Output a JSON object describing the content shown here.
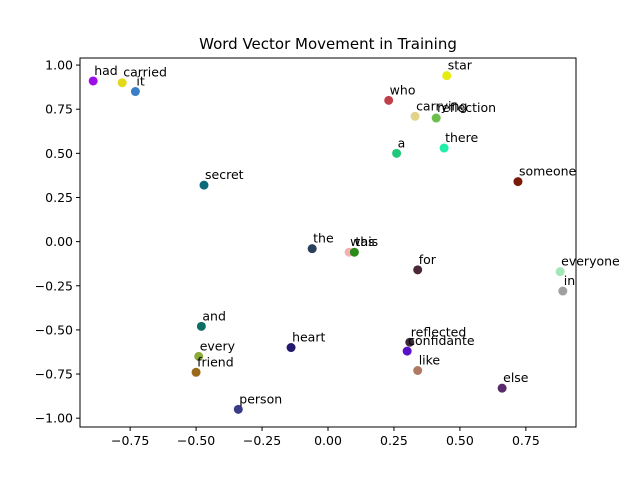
{
  "chart_data": {
    "type": "scatter",
    "title": "Word Vector Movement in Training",
    "xlabel": "",
    "ylabel": "",
    "xlim": [
      -0.94,
      0.94
    ],
    "ylim": [
      -1.05,
      1.04
    ],
    "xticks": [
      -0.75,
      -0.5,
      -0.25,
      0.0,
      0.25,
      0.5,
      0.75
    ],
    "xtick_labels": [
      "−0.75",
      "−0.50",
      "−0.25",
      "0.00",
      "0.25",
      "0.50",
      "0.75"
    ],
    "yticks": [
      -1.0,
      -0.75,
      -0.5,
      -0.25,
      0.0,
      0.25,
      0.5,
      0.75,
      1.0
    ],
    "ytick_labels": [
      "−1.00",
      "−0.75",
      "−0.50",
      "−0.25",
      "0.00",
      "0.25",
      "0.50",
      "0.75",
      "1.00"
    ],
    "grid": false,
    "points": [
      {
        "label": "had",
        "x": -0.89,
        "y": 0.91,
        "color": "#9b0fe6"
      },
      {
        "label": "carried",
        "x": -0.78,
        "y": 0.9,
        "color": "#e3d81a"
      },
      {
        "label": "it",
        "x": -0.73,
        "y": 0.85,
        "color": "#3a7dc9"
      },
      {
        "label": "secret",
        "x": -0.47,
        "y": 0.32,
        "color": "#0b6a7a"
      },
      {
        "label": "who",
        "x": 0.23,
        "y": 0.8,
        "color": "#c0404a"
      },
      {
        "label": "star",
        "x": 0.45,
        "y": 0.94,
        "color": "#e6ec12"
      },
      {
        "label": "carrying",
        "x": 0.33,
        "y": 0.71,
        "color": "#e3d28a"
      },
      {
        "label": "reflection",
        "x": 0.41,
        "y": 0.7,
        "color": "#6ac04a"
      },
      {
        "label": "a",
        "x": 0.26,
        "y": 0.5,
        "color": "#1fc87a"
      },
      {
        "label": "there",
        "x": 0.44,
        "y": 0.53,
        "color": "#1ef0a8"
      },
      {
        "label": "someone",
        "x": 0.72,
        "y": 0.34,
        "color": "#7a1a08"
      },
      {
        "label": "the",
        "x": -0.06,
        "y": -0.04,
        "color": "#2a3f5c"
      },
      {
        "label": "was",
        "x": 0.08,
        "y": -0.06,
        "color": "#f2b3b0"
      },
      {
        "label": "this",
        "x": 0.1,
        "y": -0.06,
        "color": "#2a8a1a"
      },
      {
        "label": "for",
        "x": 0.34,
        "y": -0.16,
        "color": "#4a2a3a"
      },
      {
        "label": "everyone",
        "x": 0.88,
        "y": -0.17,
        "color": "#a3e6b8"
      },
      {
        "label": "in",
        "x": 0.89,
        "y": -0.28,
        "color": "#a0a0a0"
      },
      {
        "label": "and",
        "x": -0.48,
        "y": -0.48,
        "color": "#0e6e66"
      },
      {
        "label": "heart",
        "x": -0.14,
        "y": -0.6,
        "color": "#221a6e"
      },
      {
        "label": "reflected",
        "x": 0.31,
        "y": -0.57,
        "color": "#3a2a38"
      },
      {
        "label": "confidante",
        "x": 0.3,
        "y": -0.62,
        "color": "#5a10c8"
      },
      {
        "label": "every",
        "x": -0.49,
        "y": -0.65,
        "color": "#8aaa3a"
      },
      {
        "label": "friend",
        "x": -0.5,
        "y": -0.74,
        "color": "#9a6a1a"
      },
      {
        "label": "like",
        "x": 0.34,
        "y": -0.73,
        "color": "#b07a62"
      },
      {
        "label": "else",
        "x": 0.66,
        "y": -0.83,
        "color": "#5a2a6a"
      },
      {
        "label": "person",
        "x": -0.34,
        "y": -0.95,
        "color": "#3a3a88"
      }
    ]
  }
}
